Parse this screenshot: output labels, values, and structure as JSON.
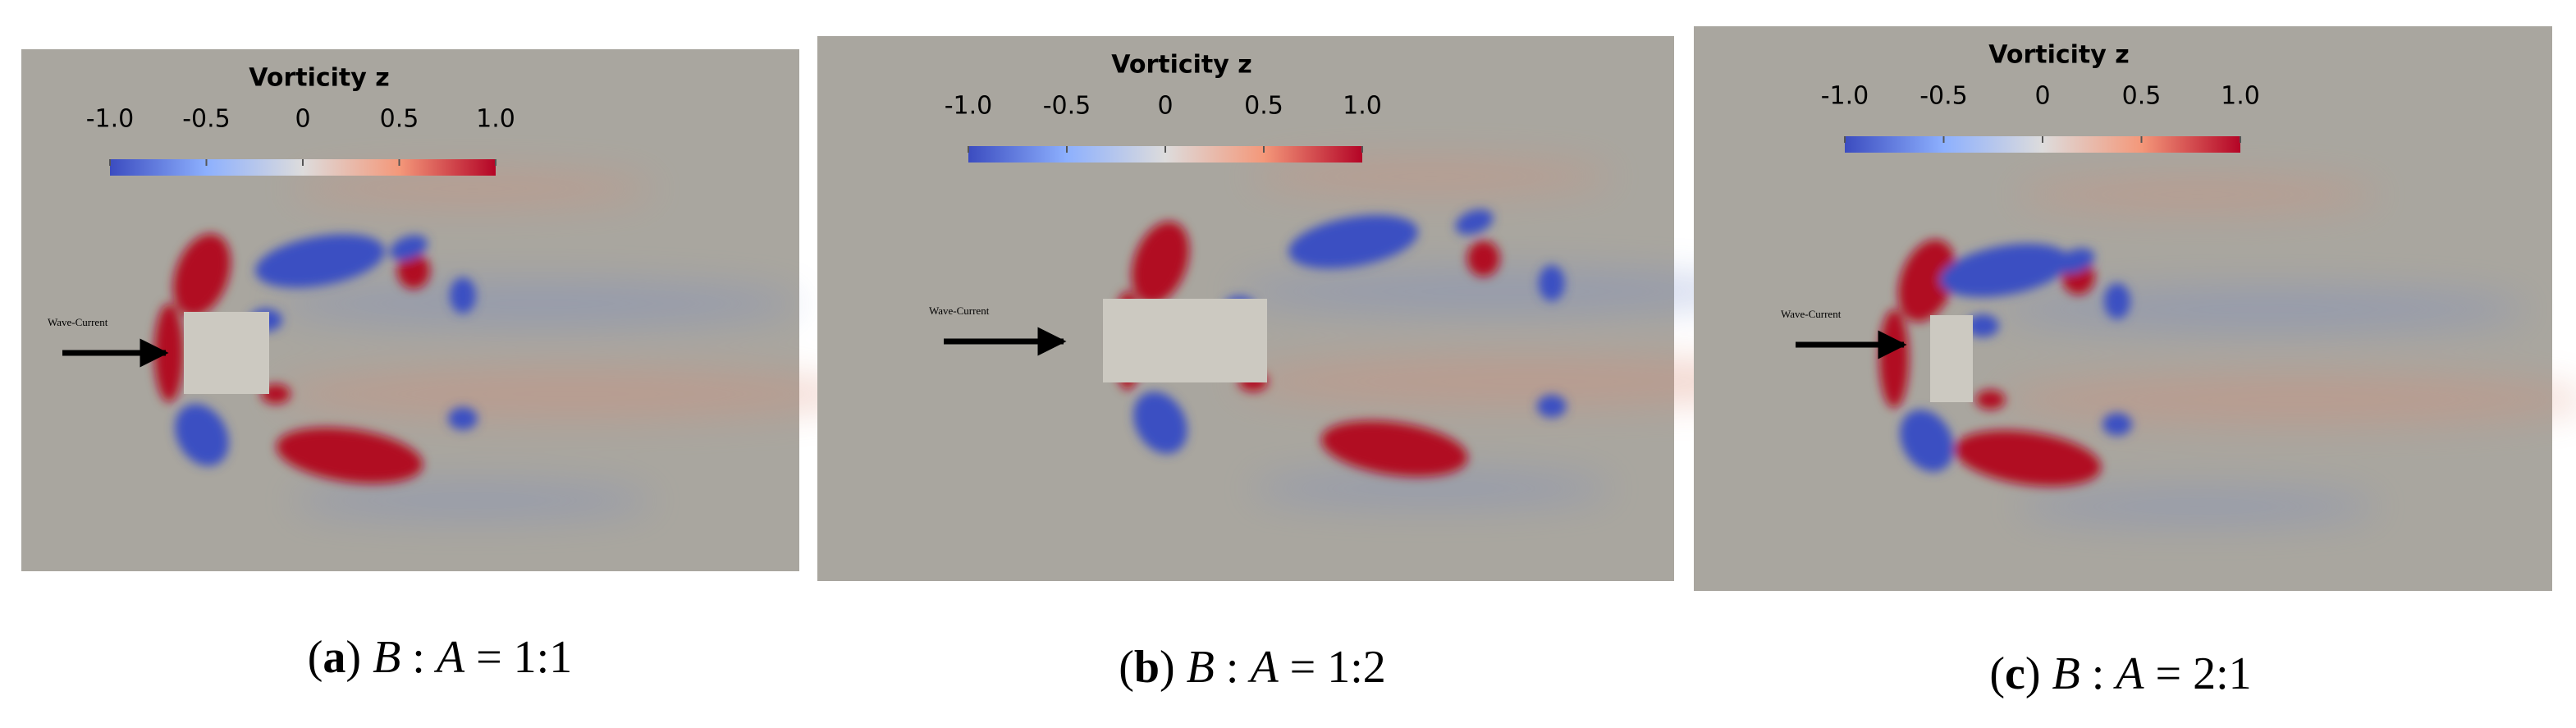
{
  "panels": [
    {
      "colorbar": {
        "title": "Vorticity z",
        "ticks": [
          "-1.0",
          "-0.5",
          "0",
          "0.5",
          "1.0"
        ]
      },
      "arrow_label": "Wave-Current",
      "caption": [
        {
          "text": "(",
          "style": "roman"
        },
        {
          "text": "a",
          "style": "bold"
        },
        {
          "text": ")",
          "style": "roman"
        },
        {
          "text": "B",
          "style": "italic"
        },
        {
          "text": ":",
          "style": "roman"
        },
        {
          "text": "A",
          "style": "italic"
        },
        {
          "text": "=",
          "style": "roman"
        },
        {
          "text": "1:1",
          "style": "roman"
        }
      ]
    },
    {
      "colorbar": {
        "title": "Vorticity z",
        "ticks": [
          "-1.0",
          "-0.5",
          "0",
          "0.5",
          "1.0"
        ]
      },
      "arrow_label": "Wave-Current",
      "caption": [
        {
          "text": "(",
          "style": "roman"
        },
        {
          "text": "b",
          "style": "bold"
        },
        {
          "text": ")",
          "style": "roman"
        },
        {
          "text": "B",
          "style": "italic"
        },
        {
          "text": ":",
          "style": "roman"
        },
        {
          "text": "A",
          "style": "italic"
        },
        {
          "text": "=",
          "style": "roman"
        },
        {
          "text": "1:2",
          "style": "roman"
        }
      ]
    },
    {
      "colorbar": {
        "title": "Vorticity z",
        "ticks": [
          "-1.0",
          "-0.5",
          "0",
          "0.5",
          "1.0"
        ]
      },
      "arrow_label": "Wave-Current",
      "caption": [
        {
          "text": "(",
          "style": "roman"
        },
        {
          "text": "c",
          "style": "bold"
        },
        {
          "text": ")",
          "style": "roman"
        },
        {
          "text": "B",
          "style": "italic"
        },
        {
          "text": ":",
          "style": "roman"
        },
        {
          "text": "A",
          "style": "italic"
        },
        {
          "text": "=",
          "style": "roman"
        },
        {
          "text": "2:1",
          "style": "roman"
        }
      ]
    }
  ]
}
